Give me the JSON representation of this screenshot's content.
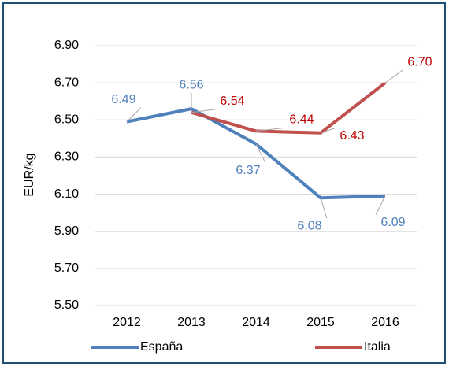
{
  "chart_data": {
    "type": "line",
    "categories": [
      "2012",
      "2013",
      "2014",
      "2015",
      "2016"
    ],
    "y_label": "EUR/kg",
    "series": [
      {
        "name": "España",
        "color": "#4f81bd",
        "label_color": "#4f81bd",
        "values": [
          6.49,
          6.56,
          6.37,
          6.08,
          6.09
        ]
      },
      {
        "name": "Italia",
        "color": "#c0504d",
        "label_color": "#c00000",
        "values": [
          null,
          6.54,
          6.44,
          6.43,
          6.7
        ],
        "value_labels": [
          null,
          "6.54",
          "6.44",
          "6.43",
          "6.70"
        ]
      }
    ],
    "ylim": [
      5.5,
      6.9
    ],
    "yticks": [
      {
        "value": 5.5,
        "label": "5.50"
      },
      {
        "value": 5.7,
        "label": "5.70"
      },
      {
        "value": 5.9,
        "label": "5.90"
      },
      {
        "value": 6.1,
        "label": "6.10"
      },
      {
        "value": 6.3,
        "label": "6.30"
      },
      {
        "value": 6.5,
        "label": "6.50"
      },
      {
        "value": 6.7,
        "label": "6.70"
      },
      {
        "value": 6.9,
        "label": "6.90"
      }
    ],
    "grid": true,
    "legend": "bottom"
  }
}
